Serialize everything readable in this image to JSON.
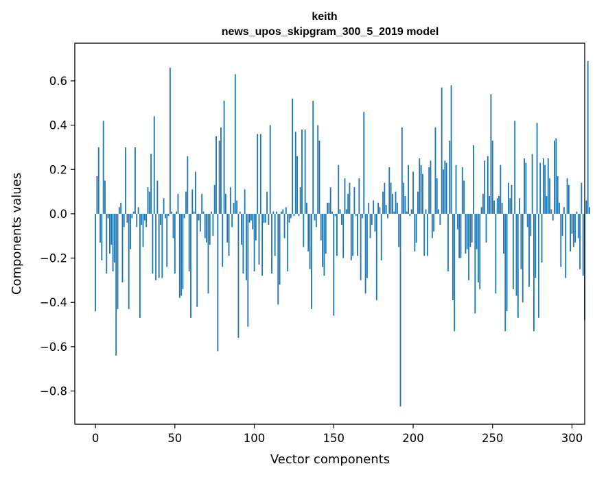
{
  "chart_data": {
    "type": "bar",
    "title": "keith",
    "subtitle": "news_upos_skipgram_300_5_2019 model",
    "xlabel": "Vector components",
    "ylabel": "Components values",
    "xlim": [
      -13,
      308
    ],
    "ylim": [
      -0.95,
      0.77
    ],
    "x_ticks": [
      0,
      50,
      100,
      150,
      200,
      250,
      300
    ],
    "x_tick_labels": [
      "0",
      "50",
      "100",
      "150",
      "200",
      "250",
      "300"
    ],
    "y_ticks": [
      -0.8,
      -0.6,
      -0.4,
      -0.2,
      0.0,
      0.2,
      0.4,
      0.6
    ],
    "y_tick_labels": [
      "−0.8",
      "−0.6",
      "−0.4",
      "−0.2",
      "0.0",
      "0.2",
      "0.4",
      "0.6"
    ],
    "bar_color": "#1f77b4",
    "grid": false,
    "values": [
      -0.44,
      0.17,
      0.3,
      -0.13,
      -0.21,
      0.42,
      0.15,
      -0.27,
      -0.02,
      -0.18,
      -0.14,
      -0.26,
      -0.22,
      -0.64,
      -0.43,
      0.03,
      0.05,
      -0.31,
      -0.06,
      0.3,
      -0.04,
      -0.43,
      -0.16,
      -0.02,
      0.01,
      0.3,
      -0.06,
      0.03,
      -0.47,
      -0.05,
      -0.15,
      -0.03,
      -0.06,
      0.12,
      0.1,
      0.27,
      -0.27,
      0.44,
      -0.3,
      0.15,
      -0.29,
      -0.05,
      -0.29,
      0.07,
      -0.02,
      -0.24,
      -0.01,
      0.66,
      0.01,
      -0.11,
      -0.27,
      0.01,
      0.09,
      -0.38,
      -0.37,
      -0.34,
      -0.02,
      0.1,
      0.26,
      -0.26,
      -0.47,
      0.11,
      0.01,
      0.19,
      -0.42,
      -0.03,
      -0.08,
      0.09,
      0.01,
      -0.11,
      -0.13,
      -0.36,
      -0.14,
      0.01,
      -0.1,
      0.13,
      0.35,
      -0.62,
      0.33,
      0.39,
      -0.24,
      0.51,
      0.09,
      -0.13,
      -0.19,
      0.12,
      -0.06,
      0.05,
      0.63,
      0.06,
      -0.56,
      0.01,
      -0.14,
      -0.27,
      0.11,
      -0.3,
      -0.51,
      -0.04,
      -0.03,
      -0.07,
      -0.26,
      -0.12,
      0.36,
      -0.23,
      0.36,
      -0.28,
      -0.04,
      -0.04,
      0.1,
      -0.05,
      0.4,
      -0.27,
      0.01,
      -0.19,
      0.01,
      -0.41,
      -0.32,
      0.01,
      0.02,
      -0.11,
      0.03,
      -0.26,
      -0.04,
      -0.02,
      0.52,
      -0.01,
      0.37,
      0.26,
      -0.01,
      0.12,
      0.38,
      -0.15,
      0.38,
      0.05,
      -0.17,
      -0.25,
      -0.43,
      0.51,
      -0.03,
      -0.06,
      0.4,
      0.33,
      -0.12,
      -0.24,
      -0.28,
      -0.18,
      0.05,
      0.05,
      0.12,
      0.01,
      -0.46,
      -0.01,
      -0.19,
      0.22,
      0.02,
      -0.05,
      -0.2,
      0.16,
      0.02,
      0.09,
      0.14,
      -0.21,
      -0.19,
      0.12,
      -0.01,
      -0.19,
      0.16,
      -0.3,
      -0.02,
      0.46,
      -0.36,
      -0.29,
      0.05,
      -0.11,
      -0.05,
      0.06,
      -0.08,
      -0.39,
      0.05,
      0.03,
      -0.21,
      0.1,
      0.14,
      0.04,
      -0.02,
      0.21,
      0.14,
      0.09,
      0.01,
      0.1,
      0.05,
      -0.15,
      -0.87,
      0.39,
      0.14,
      0.08,
      0.01,
      0.22,
      -0.01,
      0.02,
      0.19,
      -0.17,
      -0.13,
      0.1,
      0.25,
      0.22,
      0.18,
      -0.19,
      0.02,
      -0.19,
      0.21,
      0.24,
      -0.11,
      -0.08,
      0.39,
      0.16,
      0.02,
      -0.05,
      0.57,
      0.2,
      0.24,
      0.23,
      -0.26,
      0.33,
      0.58,
      -0.39,
      -0.53,
      0.22,
      -0.07,
      -0.2,
      -0.2,
      0.21,
      0.15,
      -0.18,
      -0.16,
      -0.3,
      -0.15,
      -0.13,
      0.31,
      -0.45,
      -0.16,
      -0.31,
      -0.34,
      0.03,
      0.09,
      0.24,
      -0.13,
      0.26,
      0.08,
      0.54,
      0.33,
      0.06,
      -0.36,
      0.07,
      0.08,
      0.22,
      0.05,
      -0.18,
      -0.53,
      -0.44,
      0.14,
      0.07,
      0.13,
      -0.34,
      0.42,
      -0.37,
      -0.47,
      0.07,
      -0.25,
      -0.4,
      0.25,
      0.23,
      -0.06,
      -0.33,
      -0.1,
      0.27,
      -0.53,
      -0.29,
      0.41,
      -0.47,
      0.23,
      -0.22,
      0.25,
      0.22,
      0.08,
      0.25,
      0.16,
      0.02,
      -0.03,
      0.33,
      0.34,
      0.17,
      0.05,
      -0.24,
      -0.1,
      0.03,
      -0.29,
      0.16,
      0.13,
      -0.17,
      -0.09,
      -0.15,
      -0.13,
      0.01,
      -0.11,
      -0.25,
      0.14,
      -0.28,
      -0.48,
      0.06,
      0.69,
      0.03
    ]
  }
}
